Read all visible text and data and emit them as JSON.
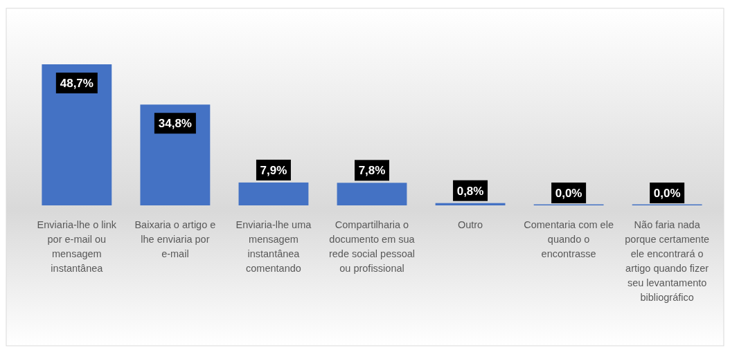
{
  "chart_data": {
    "type": "bar",
    "categories": [
      "Enviaria-lhe o link por e-mail ou mensagem instantânea",
      "Baixaria o artigo e lhe enviaria por e-mail",
      "Enviaria-lhe uma mensagem instantânea comentando",
      "Compartilharia o documento em sua rede social pessoal ou profissional",
      "Outro",
      "Comentaria com ele quando o encontrasse",
      "Não faria nada porque certamente ele encontrará o artigo quando fizer seu levantamento bibliográfico"
    ],
    "values": [
      48.7,
      34.8,
      7.9,
      7.8,
      0.8,
      0.0,
      0.0
    ],
    "value_labels": [
      "48,7%",
      "34,8%",
      "7,9%",
      "7,8%",
      "0,8%",
      "0,0%",
      "0,0%"
    ],
    "color": "#4472c4"
  }
}
